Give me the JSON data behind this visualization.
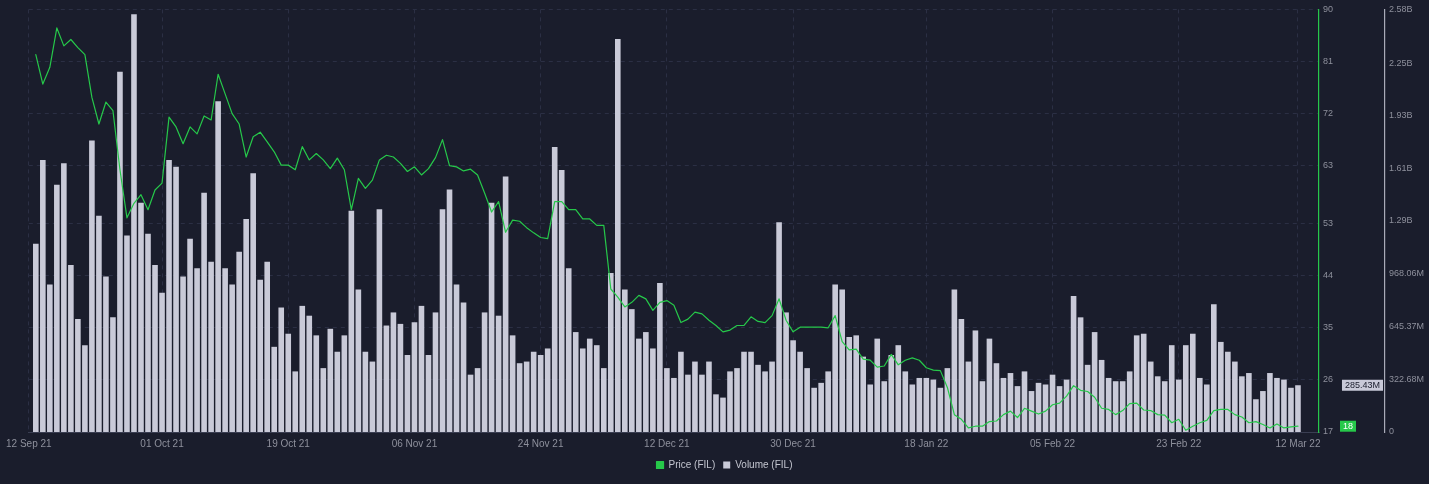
{
  "chart_data": {
    "type": "bar",
    "x": [
      "2021-09-13",
      "2021-09-14",
      "2021-09-15",
      "2021-09-16",
      "2021-09-17",
      "2021-09-18",
      "2021-09-19",
      "2021-09-20",
      "2021-09-21",
      "2021-09-22",
      "2021-09-23",
      "2021-09-24",
      "2021-09-25",
      "2021-09-26",
      "2021-09-27",
      "2021-09-28",
      "2021-09-29",
      "2021-09-30",
      "2021-10-01",
      "2021-10-02",
      "2021-10-03",
      "2021-10-04",
      "2021-10-05",
      "2021-10-06",
      "2021-10-07",
      "2021-10-08",
      "2021-10-09",
      "2021-10-10",
      "2021-10-11",
      "2021-10-12",
      "2021-10-13",
      "2021-10-14",
      "2021-10-15",
      "2021-10-16",
      "2021-10-17",
      "2021-10-18",
      "2021-10-19",
      "2021-10-20",
      "2021-10-21",
      "2021-10-22",
      "2021-10-23",
      "2021-10-24",
      "2021-10-25",
      "2021-10-26",
      "2021-10-27",
      "2021-10-28",
      "2021-10-29",
      "2021-10-30",
      "2021-10-31",
      "2021-11-01",
      "2021-11-02",
      "2021-11-03",
      "2021-11-04",
      "2021-11-05",
      "2021-11-06",
      "2021-11-07",
      "2021-11-08",
      "2021-11-09",
      "2021-11-10",
      "2021-11-11",
      "2021-11-12",
      "2021-11-13",
      "2021-11-14",
      "2021-11-15",
      "2021-11-16",
      "2021-11-17",
      "2021-11-18",
      "2021-11-19",
      "2021-11-20",
      "2021-11-21",
      "2021-11-22",
      "2021-11-23",
      "2021-11-24",
      "2021-11-25",
      "2021-11-26",
      "2021-11-27",
      "2021-11-28",
      "2021-11-29",
      "2021-11-30",
      "2021-12-01",
      "2021-12-02",
      "2021-12-03",
      "2021-12-04",
      "2021-12-05",
      "2021-12-06",
      "2021-12-07",
      "2021-12-08",
      "2021-12-09",
      "2021-12-10",
      "2021-12-11",
      "2021-12-12",
      "2021-12-13",
      "2021-12-14",
      "2021-12-15",
      "2021-12-16",
      "2021-12-17",
      "2021-12-18",
      "2021-12-19",
      "2021-12-20",
      "2021-12-21",
      "2021-12-22",
      "2021-12-23",
      "2021-12-24",
      "2021-12-25",
      "2021-12-26",
      "2021-12-27",
      "2021-12-28",
      "2021-12-29",
      "2021-12-30",
      "2021-12-31",
      "2022-01-01",
      "2022-01-02",
      "2022-01-03",
      "2022-01-04",
      "2022-01-05",
      "2022-01-06",
      "2022-01-07",
      "2022-01-08",
      "2022-01-09",
      "2022-01-10",
      "2022-01-11",
      "2022-01-12",
      "2022-01-13",
      "2022-01-14",
      "2022-01-15",
      "2022-01-16",
      "2022-01-17",
      "2022-01-18",
      "2022-01-19",
      "2022-01-20",
      "2022-01-21",
      "2022-01-22",
      "2022-01-23",
      "2022-01-24",
      "2022-01-25",
      "2022-01-26",
      "2022-01-27",
      "2022-01-28",
      "2022-01-29",
      "2022-01-30",
      "2022-01-31",
      "2022-02-01",
      "2022-02-02",
      "2022-02-03",
      "2022-02-04",
      "2022-02-05",
      "2022-02-06",
      "2022-02-07",
      "2022-02-08",
      "2022-02-09",
      "2022-02-10",
      "2022-02-11",
      "2022-02-12",
      "2022-02-13",
      "2022-02-14",
      "2022-02-15",
      "2022-02-16",
      "2022-02-17",
      "2022-02-18",
      "2022-02-19",
      "2022-02-20",
      "2022-02-21",
      "2022-02-22",
      "2022-02-23",
      "2022-02-24",
      "2022-02-25",
      "2022-02-26",
      "2022-02-27",
      "2022-02-28",
      "2022-03-01",
      "2022-03-02",
      "2022-03-03",
      "2022-03-04",
      "2022-03-05",
      "2022-03-06",
      "2022-03-07",
      "2022-03-08",
      "2022-03-09",
      "2022-03-10",
      "2022-03-11",
      "2022-03-12"
    ],
    "series": [
      {
        "name": "Price (FIL)",
        "type": "line",
        "color": "#26c84a",
        "values": [
          82.2,
          77.1,
          80,
          86.8,
          83.7,
          84.8,
          83.4,
          82.2,
          74.8,
          70.2,
          74,
          72.5,
          62.3,
          54,
          56.5,
          58,
          55.4,
          58.8,
          60,
          71.4,
          69.7,
          66.8,
          69.7,
          68.5,
          71.6,
          70.9,
          78.8,
          75.4,
          72,
          70.2,
          64.5,
          68,
          68.8,
          67.1,
          65.4,
          63.1,
          63.1,
          62.3,
          66.3,
          64,
          65.1,
          64,
          62.5,
          64.3,
          62.3,
          55.4,
          60.8,
          59.1,
          60.5,
          64,
          64.8,
          64.5,
          63.4,
          62,
          62.8,
          61.4,
          62.5,
          64.4,
          67.5,
          63,
          62.8,
          62.1,
          62.4,
          61.4,
          58.3,
          55,
          56.8,
          51.5,
          53.6,
          53.4,
          52.3,
          51.4,
          50.6,
          50.4,
          56.8,
          56.8,
          55.4,
          55.4,
          53.8,
          53.8,
          52.7,
          52.7,
          41.7,
          40.3,
          38.6,
          39.4,
          40.6,
          40,
          38,
          39.4,
          39.7,
          38.9,
          35.9,
          36.5,
          37.7,
          37.4,
          36.3,
          35.4,
          34.3,
          34.6,
          35.4,
          35.4,
          36.9,
          36.1,
          35.9,
          37.1,
          40,
          36.3,
          34.3,
          35.1,
          35.1,
          35.1,
          35.1,
          35,
          37.1,
          32.6,
          31.2,
          31.3,
          29.6,
          29.4,
          28.2,
          28.4,
          30.4,
          28.6,
          29.4,
          29.8,
          29.4,
          28.1,
          27.7,
          27.6,
          24.7,
          20,
          19.2,
          17.7,
          18,
          18,
          18.8,
          18.9,
          20,
          20.6,
          19.5,
          21.1,
          20.6,
          20.1,
          20.6,
          21.7,
          22,
          23.2,
          25,
          24.2,
          24,
          23,
          21.1,
          20.9,
          20,
          20.7,
          21.9,
          22,
          20.8,
          20.7,
          20,
          19.9,
          18.6,
          19.2,
          17.3,
          18,
          18.6,
          19,
          20.7,
          20.9,
          20.9,
          20,
          19.6,
          18.6,
          18.8,
          18.3,
          17.7,
          18.4,
          17.7,
          17.9,
          18
        ]
      },
      {
        "name": "Volume (FIL)",
        "axis": "y2",
        "color": "#c9cad8",
        "values": [
          1150000000,
          1660000000,
          900000000,
          1510000000,
          1640000000,
          1020000000,
          690000000,
          530000000,
          1780000000,
          1320000000,
          950000000,
          700000000,
          2200000000,
          1200000000,
          2550000000,
          1400000000,
          1210000000,
          1020000000,
          850000000,
          1660000000,
          1620000000,
          950000000,
          1180000000,
          1000000000,
          1460000000,
          1040000000,
          2020000000,
          1000000000,
          900000000,
          1100000000,
          1300000000,
          1580000000,
          930000000,
          1040000000,
          520000000,
          760000000,
          600000000,
          370000000,
          770000000,
          710000000,
          590000000,
          390000000,
          630000000,
          490000000,
          590000000,
          1350000000,
          870000000,
          490000000,
          430000000,
          1360000000,
          650000000,
          730000000,
          660000000,
          470000000,
          670000000,
          770000000,
          470000000,
          730000000,
          1360000000,
          1480000000,
          900000000,
          790000000,
          350000000,
          390000000,
          730000000,
          1400000000,
          710000000,
          1560000000,
          590000000,
          420000000,
          430000000,
          490000000,
          470000000,
          510000000,
          1740000000,
          1600000000,
          1000000000,
          610000000,
          510000000,
          570000000,
          530000000,
          390000000,
          970000000,
          2400000000,
          870000000,
          750000000,
          570000000,
          610000000,
          510000000,
          910000000,
          390000000,
          330000000,
          490000000,
          350000000,
          430000000,
          350000000,
          430000000,
          230000000,
          210000000,
          370000000,
          390000000,
          490000000,
          490000000,
          410000000,
          370000000,
          430000000,
          1280000000,
          730000000,
          560000000,
          490000000,
          390000000,
          270000000,
          300000000,
          370000000,
          900000000,
          870000000,
          580000000,
          590000000,
          460000000,
          290000000,
          570000000,
          310000000,
          470000000,
          530000000,
          370000000,
          290000000,
          330000000,
          330000000,
          320000000,
          270000000,
          390000000,
          870000000,
          690000000,
          430000000,
          620000000,
          310000000,
          570000000,
          420000000,
          330000000,
          360000000,
          280000000,
          370000000,
          250000000,
          300000000,
          290000000,
          350000000,
          280000000,
          320000000,
          830000000,
          700000000,
          410000000,
          610000000,
          440000000,
          330000000,
          310000000,
          310000000,
          370000000,
          590000000,
          600000000,
          430000000,
          340000000,
          310000000,
          530000000,
          320000000,
          530000000,
          600000000,
          330000000,
          290000000,
          780000000,
          550000000,
          490000000,
          430000000,
          340000000,
          360000000,
          200000000,
          250000000,
          360000000,
          330000000,
          320000000,
          270000000,
          285430000
        ]
      }
    ],
    "xlim": [
      "2021-09-12",
      "2022-03-15"
    ],
    "xticks": [
      {
        "value": "2021-09-12",
        "label": "12 Sep 21"
      },
      {
        "value": "2021-10-01",
        "label": "01 Oct 21"
      },
      {
        "value": "2021-10-19",
        "label": "19 Oct 21"
      },
      {
        "value": "2021-11-06",
        "label": "06 Nov 21"
      },
      {
        "value": "2021-11-24",
        "label": "24 Nov 21"
      },
      {
        "value": "2021-12-12",
        "label": "12 Dec 21"
      },
      {
        "value": "2021-12-30",
        "label": "30 Dec 21"
      },
      {
        "value": "2022-01-18",
        "label": "18 Jan 22"
      },
      {
        "value": "2022-02-05",
        "label": "05 Feb 22"
      },
      {
        "value": "2022-02-23",
        "label": "23 Feb 22"
      },
      {
        "value": "2022-03-12",
        "label": "12 Mar 22"
      }
    ],
    "ylim": [
      17,
      90
    ],
    "yticks": [
      17,
      26,
      35,
      44,
      53,
      63,
      72,
      81,
      90
    ],
    "y2lim": [
      0,
      2580000000
    ],
    "y2ticks": [
      0,
      {
        "value": 322680000,
        "label": "322.68M"
      },
      {
        "value": 645370000,
        "label": "645.37M"
      },
      {
        "value": 968060000,
        "label": "968.06M"
      },
      {
        "value": 1290000000,
        "label": "1.29B"
      },
      {
        "value": 1610000000,
        "label": "1.61B"
      },
      {
        "value": 1930000000,
        "label": "1.93B"
      },
      {
        "value": 2250000000,
        "label": "2.25B"
      },
      {
        "value": 2580000000,
        "label": "2.58B"
      }
    ],
    "annotations": [
      "18",
      "285.43M"
    ],
    "grid": true,
    "legend": "bottom"
  }
}
